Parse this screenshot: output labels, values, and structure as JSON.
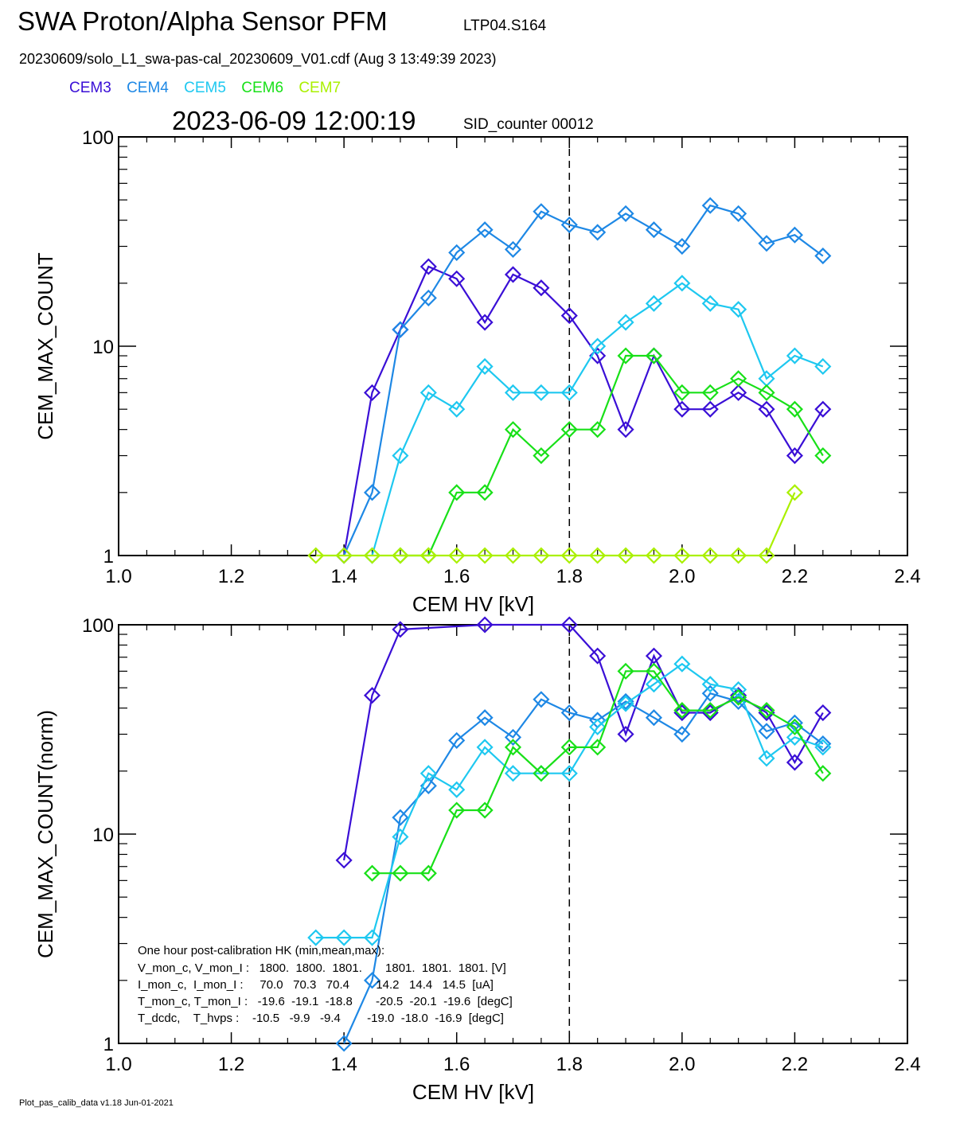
{
  "header": {
    "title": "SWA Proton/Alpha Sensor PFM",
    "run_id": "LTP04.S164",
    "file_line": "20230609/solo_L1_swa-pas-cal_20230609_V01.cdf  (Aug  3 13:49:39 2023)",
    "timestamp": "2023-06-09 12:00:19",
    "sid_counter": "SID_counter 00012"
  },
  "legend": [
    {
      "name": "CEM3",
      "color": "#3a0fd6"
    },
    {
      "name": "CEM4",
      "color": "#1e88e5"
    },
    {
      "name": "CEM5",
      "color": "#1ec8f0"
    },
    {
      "name": "CEM6",
      "color": "#18e018"
    },
    {
      "name": "CEM7",
      "color": "#aaf000"
    }
  ],
  "footer": "Plot_pas_calib_data v1.18 Jun-01-2021",
  "hk_table": {
    "title": "One hour post-calibration HK (min,mean,max):",
    "rows": [
      "V_mon_c, V_mon_I :   1800.  1800.  1801.       1801.  1801.  1801. [V]",
      "I_mon_c,  I_mon_I :     70.0   70.3   70.4        14.2   14.4   14.5  [uA]",
      "T_mon_c, T_mon_I :   -19.6  -19.1  -18.8       -20.5  -20.1  -19.6  [degC]",
      "T_dcdc,    T_hvps :    -10.5   -9.9   -9.4        -19.0  -18.0  -16.9  [degC]"
    ]
  },
  "chart_data": [
    {
      "type": "line",
      "xlabel": "CEM HV [kV]",
      "ylabel": "CEM_MAX_COUNT",
      "xlim": [
        1.0,
        2.4
      ],
      "ylim": [
        1,
        100
      ],
      "yscale": "log",
      "xticks": [
        "1.0",
        "1.2",
        "1.4",
        "1.6",
        "1.8",
        "2.0",
        "2.2",
        "2.4"
      ],
      "yticks": [
        "1",
        "10",
        "100"
      ],
      "vline_x": 1.8,
      "series": [
        {
          "name": "CEM3",
          "color": "#3a0fd6",
          "x": [
            1.4,
            1.45,
            1.5,
            1.55,
            1.6,
            1.65,
            1.7,
            1.75,
            1.8,
            1.85,
            1.9,
            1.95,
            2.0,
            2.05,
            2.1,
            2.15,
            2.2,
            2.25
          ],
          "y": [
            1,
            6,
            12,
            24,
            21,
            13,
            22,
            19,
            14,
            9,
            4,
            9,
            5,
            5,
            6,
            5,
            3,
            5
          ]
        },
        {
          "name": "CEM4",
          "color": "#1e88e5",
          "x": [
            1.4,
            1.45,
            1.5,
            1.55,
            1.6,
            1.65,
            1.7,
            1.75,
            1.8,
            1.85,
            1.9,
            1.95,
            2.0,
            2.05,
            2.1,
            2.15,
            2.2,
            2.25
          ],
          "y": [
            1,
            2,
            12,
            17,
            28,
            36,
            29,
            44,
            38,
            35,
            43,
            36,
            30,
            47,
            43,
            31,
            34,
            27
          ]
        },
        {
          "name": "CEM5",
          "color": "#1ec8f0",
          "x": [
            1.45,
            1.5,
            1.55,
            1.6,
            1.65,
            1.7,
            1.75,
            1.8,
            1.85,
            1.9,
            1.95,
            2.0,
            2.05,
            2.1,
            2.15,
            2.2,
            2.25
          ],
          "y": [
            1,
            3,
            6,
            5,
            8,
            6,
            6,
            6,
            10,
            13,
            16,
            20,
            16,
            15,
            7,
            9,
            8
          ]
        },
        {
          "name": "CEM6",
          "color": "#18e018",
          "x": [
            1.5,
            1.55,
            1.6,
            1.65,
            1.7,
            1.75,
            1.8,
            1.85,
            1.9,
            1.95,
            2.0,
            2.05,
            2.1,
            2.15,
            2.2,
            2.25
          ],
          "y": [
            1,
            1,
            2,
            2,
            4,
            3,
            4,
            4,
            9,
            9,
            6,
            6,
            7,
            6,
            5,
            3
          ]
        },
        {
          "name": "CEM7",
          "color": "#aaf000",
          "x": [
            1.35,
            1.4,
            1.45,
            1.5,
            1.55,
            1.6,
            1.65,
            1.7,
            1.75,
            1.8,
            1.85,
            1.9,
            1.95,
            2.0,
            2.05,
            2.1,
            2.15,
            2.2
          ],
          "y": [
            1,
            1,
            1,
            1,
            1,
            1,
            1,
            1,
            1,
            1,
            1,
            1,
            1,
            1,
            1,
            1,
            1,
            2
          ]
        }
      ]
    },
    {
      "type": "line",
      "xlabel": "CEM HV [kV]",
      "ylabel": "CEM_MAX_COUNT(norm)",
      "xlim": [
        1.0,
        2.4
      ],
      "ylim": [
        1,
        100
      ],
      "yscale": "log",
      "xticks": [
        "1.0",
        "1.2",
        "1.4",
        "1.6",
        "1.8",
        "2.0",
        "2.2",
        "2.4"
      ],
      "yticks": [
        "1",
        "10",
        "100"
      ],
      "vline_x": 1.8,
      "series": [
        {
          "name": "CEM3",
          "color": "#3a0fd6",
          "x": [
            1.4,
            1.45,
            1.5,
            1.65,
            1.8,
            1.85,
            1.9,
            1.95,
            2.0,
            2.05,
            2.1,
            2.15,
            2.2,
            2.25
          ],
          "y": [
            7.5,
            46,
            95,
            100,
            100,
            71,
            30,
            71,
            38,
            38,
            46,
            38,
            22,
            38
          ]
        },
        {
          "name": "CEM4",
          "color": "#1e88e5",
          "x": [
            1.4,
            1.45,
            1.5,
            1.55,
            1.6,
            1.65,
            1.7,
            1.75,
            1.8,
            1.85,
            1.9,
            1.95,
            2.0,
            2.05,
            2.1,
            2.15,
            2.2,
            2.25
          ],
          "y": [
            1,
            2,
            12,
            17,
            28,
            36,
            29,
            44,
            38,
            35,
            43,
            36,
            30,
            47,
            43,
            31,
            34,
            27
          ]
        },
        {
          "name": "CEM5",
          "color": "#1ec8f0",
          "x": [
            1.35,
            1.4,
            1.45,
            1.5,
            1.55,
            1.6,
            1.65,
            1.7,
            1.75,
            1.8,
            1.85,
            1.9,
            1.95,
            2.0,
            2.05,
            2.1,
            2.15,
            2.2,
            2.25
          ],
          "y": [
            3.2,
            3.2,
            3.2,
            9.7,
            19.5,
            16.3,
            26,
            19.5,
            19.5,
            19.5,
            32.5,
            42,
            52,
            65,
            52,
            49,
            23,
            29,
            26
          ]
        },
        {
          "name": "CEM6",
          "color": "#18e018",
          "x": [
            1.45,
            1.5,
            1.55,
            1.6,
            1.65,
            1.7,
            1.75,
            1.8,
            1.85,
            1.9,
            1.95,
            2.0,
            2.05,
            2.1,
            2.15,
            2.2,
            2.25
          ],
          "y": [
            6.5,
            6.5,
            6.5,
            13,
            13,
            26,
            19.5,
            26,
            26,
            60,
            60,
            39,
            39,
            45,
            39,
            32.5,
            19.5
          ]
        }
      ]
    }
  ]
}
